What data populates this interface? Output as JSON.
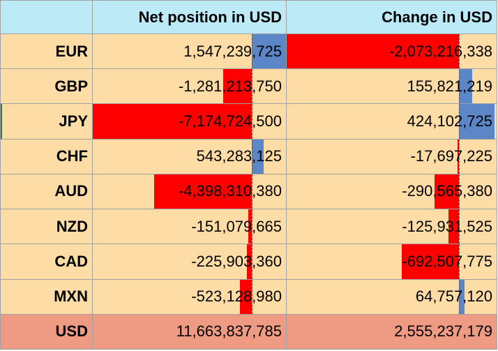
{
  "header": {
    "col1": "",
    "col2": "Net position in USD",
    "col3": "Change in USD"
  },
  "chart_data": {
    "type": "table",
    "columns": [
      "Net position in USD",
      "Change in USD"
    ],
    "rows": [
      {
        "ccy": "EUR",
        "net": 1547239725,
        "net_label": "1,547,239,725",
        "change": -2073216338,
        "change_label": "-2,073,216,338"
      },
      {
        "ccy": "GBP",
        "net": -1281213750,
        "net_label": "-1,281,213,750",
        "change": 155821219,
        "change_label": "155,821,219"
      },
      {
        "ccy": "JPY",
        "net": -7174724500,
        "net_label": "-7,174,724,500",
        "change": 424102725,
        "change_label": "424,102,725"
      },
      {
        "ccy": "CHF",
        "net": 543283125,
        "net_label": "543,283,125",
        "change": -17697225,
        "change_label": "-17,697,225"
      },
      {
        "ccy": "AUD",
        "net": -4398310380,
        "net_label": "-4,398,310,380",
        "change": -290565380,
        "change_label": "-290,565,380"
      },
      {
        "ccy": "NZD",
        "net": -151079665,
        "net_label": "-151,079,665",
        "change": -125931525,
        "change_label": "-125,931,525"
      },
      {
        "ccy": "CAD",
        "net": -225903360,
        "net_label": "-225,903,360",
        "change": -692507775,
        "change_label": "-692,507,775"
      },
      {
        "ccy": "MXN",
        "net": -523128980,
        "net_label": "-523,128,980",
        "change": 64757120,
        "change_label": "64,757,120"
      }
    ],
    "total": {
      "ccy": "USD",
      "net_label": "11,663,837,785",
      "change_label": "2,555,237,179"
    },
    "colors": {
      "negative": "#ff0000",
      "positive": "#5b86c8",
      "header_bg": "#bdeaf7",
      "row_bg": "#fddca6",
      "total_bg": "#ef9a82"
    }
  }
}
